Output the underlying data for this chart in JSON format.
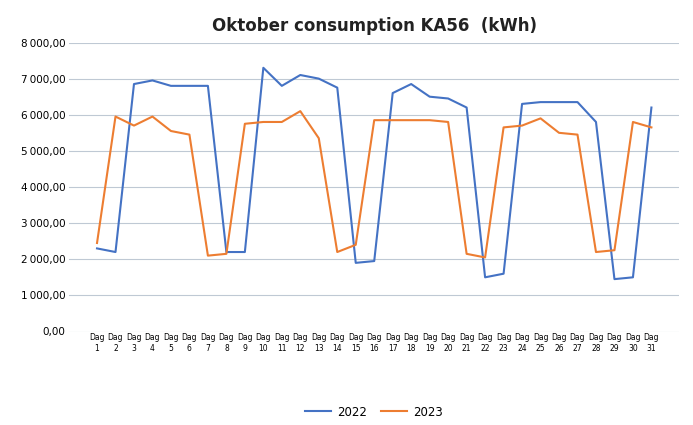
{
  "title": "Oktober consumption KA56  (kWh)",
  "days": [
    1,
    2,
    3,
    4,
    5,
    6,
    7,
    8,
    9,
    10,
    11,
    12,
    13,
    14,
    15,
    16,
    17,
    18,
    19,
    20,
    21,
    22,
    23,
    24,
    25,
    26,
    27,
    28,
    29,
    30,
    31
  ],
  "values_2022": [
    2300,
    2200,
    6850,
    6950,
    6800,
    6800,
    6800,
    2200,
    2200,
    7300,
    6800,
    7100,
    7000,
    6750,
    1900,
    1950,
    6600,
    6850,
    6500,
    6450,
    6200,
    1500,
    1600,
    6300,
    6350,
    6350,
    6350,
    5800,
    1450,
    1500,
    6200
  ],
  "values_2023": [
    2450,
    5950,
    5700,
    5950,
    5550,
    5450,
    2100,
    2150,
    5750,
    5800,
    5800,
    6100,
    5350,
    2200,
    2400,
    5850,
    5850,
    5850,
    5850,
    5800,
    2150,
    2050,
    5650,
    5700,
    5900,
    5500,
    5450,
    2200,
    2250,
    5800,
    5650
  ],
  "color_2022": "#4472C4",
  "color_2023": "#ED7D31",
  "ylim": [
    0,
    8000
  ],
  "yticks": [
    0,
    1000,
    2000,
    3000,
    4000,
    5000,
    6000,
    7000,
    8000
  ],
  "legend_labels": [
    "2022",
    "2023"
  ],
  "background_color": "#ffffff",
  "grid_color": "#bfc9d4"
}
